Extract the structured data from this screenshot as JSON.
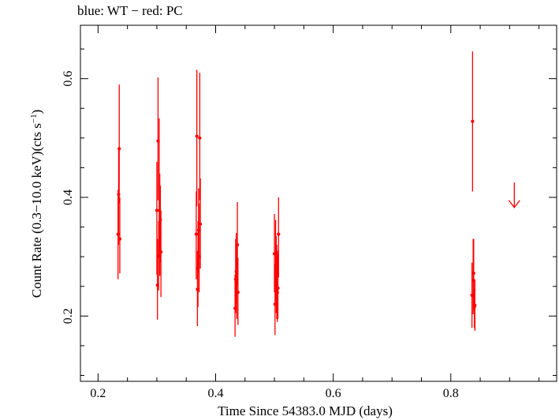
{
  "chart_data": {
    "type": "scatter",
    "title": "blue: WT − red: PC",
    "xlabel": "Time Since 54383.0 MJD (days)",
    "ylabel_main": "Count Rate (0.3−10.0 keV)(cts s",
    "ylabel_sup": "−1",
    "ylabel_end": ")",
    "xlim": [
      0.17,
      0.98
    ],
    "ylim": [
      0.09,
      0.69
    ],
    "xticks": [
      0.2,
      0.4,
      0.6,
      0.8
    ],
    "xtick_labels": [
      "0.2",
      "0.4",
      "0.6",
      "0.8"
    ],
    "yticks": [
      0.2,
      0.4,
      0.6
    ],
    "ytick_labels": [
      "0.2",
      "0.4",
      "0.6"
    ],
    "series": [
      {
        "name": "PC",
        "color": "#ff0000",
        "points": [
          {
            "x": 0.234,
            "y": 0.338,
            "lo": 0.262,
            "hi": 0.413
          },
          {
            "x": 0.235,
            "y": 0.405,
            "lo": 0.32,
            "hi": 0.48
          },
          {
            "x": 0.236,
            "y": 0.482,
            "lo": 0.39,
            "hi": 0.59
          },
          {
            "x": 0.237,
            "y": 0.33,
            "lo": 0.272,
            "hi": 0.4
          },
          {
            "x": 0.3,
            "y": 0.378,
            "lo": 0.27,
            "hi": 0.46
          },
          {
            "x": 0.301,
            "y": 0.252,
            "lo": 0.194,
            "hi": 0.33
          },
          {
            "x": 0.302,
            "y": 0.495,
            "lo": 0.395,
            "hi": 0.602
          },
          {
            "x": 0.303,
            "y": 0.3,
            "lo": 0.243,
            "hi": 0.36
          },
          {
            "x": 0.304,
            "y": 0.378,
            "lo": 0.3,
            "hi": 0.533
          },
          {
            "x": 0.305,
            "y": 0.34,
            "lo": 0.268,
            "hi": 0.44
          },
          {
            "x": 0.306,
            "y": 0.362,
            "lo": 0.29,
            "hi": 0.42
          },
          {
            "x": 0.307,
            "y": 0.308,
            "lo": 0.232,
            "hi": 0.378
          },
          {
            "x": 0.367,
            "y": 0.338,
            "lo": 0.262,
            "hi": 0.41
          },
          {
            "x": 0.368,
            "y": 0.503,
            "lo": 0.385,
            "hi": 0.615
          },
          {
            "x": 0.369,
            "y": 0.245,
            "lo": 0.183,
            "hi": 0.31
          },
          {
            "x": 0.37,
            "y": 0.28,
            "lo": 0.215,
            "hi": 0.36
          },
          {
            "x": 0.371,
            "y": 0.345,
            "lo": 0.273,
            "hi": 0.415
          },
          {
            "x": 0.372,
            "y": 0.3,
            "lo": 0.24,
            "hi": 0.39
          },
          {
            "x": 0.373,
            "y": 0.5,
            "lo": 0.395,
            "hi": 0.61
          },
          {
            "x": 0.374,
            "y": 0.355,
            "lo": 0.28,
            "hi": 0.432
          },
          {
            "x": 0.433,
            "y": 0.213,
            "lo": 0.165,
            "hi": 0.27
          },
          {
            "x": 0.434,
            "y": 0.262,
            "lo": 0.205,
            "hi": 0.33
          },
          {
            "x": 0.435,
            "y": 0.275,
            "lo": 0.22,
            "hi": 0.34
          },
          {
            "x": 0.436,
            "y": 0.253,
            "lo": 0.195,
            "hi": 0.32
          },
          {
            "x": 0.437,
            "y": 0.32,
            "lo": 0.255,
            "hi": 0.392
          },
          {
            "x": 0.438,
            "y": 0.24,
            "lo": 0.185,
            "hi": 0.298
          },
          {
            "x": 0.5,
            "y": 0.305,
            "lo": 0.24,
            "hi": 0.372
          },
          {
            "x": 0.501,
            "y": 0.22,
            "lo": 0.168,
            "hi": 0.282
          },
          {
            "x": 0.502,
            "y": 0.285,
            "lo": 0.225,
            "hi": 0.362
          },
          {
            "x": 0.503,
            "y": 0.262,
            "lo": 0.205,
            "hi": 0.335
          },
          {
            "x": 0.504,
            "y": 0.25,
            "lo": 0.195,
            "hi": 0.32
          },
          {
            "x": 0.505,
            "y": 0.24,
            "lo": 0.19,
            "hi": 0.31
          },
          {
            "x": 0.506,
            "y": 0.247,
            "lo": 0.195,
            "hi": 0.305
          },
          {
            "x": 0.507,
            "y": 0.338,
            "lo": 0.265,
            "hi": 0.4
          },
          {
            "x": 0.836,
            "y": 0.235,
            "lo": 0.18,
            "hi": 0.29
          },
          {
            "x": 0.837,
            "y": 0.528,
            "lo": 0.41,
            "hi": 0.646
          },
          {
            "x": 0.838,
            "y": 0.26,
            "lo": 0.203,
            "hi": 0.33
          },
          {
            "x": 0.839,
            "y": 0.272,
            "lo": 0.21,
            "hi": 0.33
          },
          {
            "x": 0.84,
            "y": 0.215,
            "lo": 0.18,
            "hi": 0.245
          },
          {
            "x": 0.841,
            "y": 0.218,
            "lo": 0.175,
            "hi": 0.262
          }
        ]
      }
    ],
    "upper_limits": [
      {
        "x": 0.908,
        "y": 0.425,
        "to": 0.383,
        "color": "#ff0000"
      }
    ]
  }
}
